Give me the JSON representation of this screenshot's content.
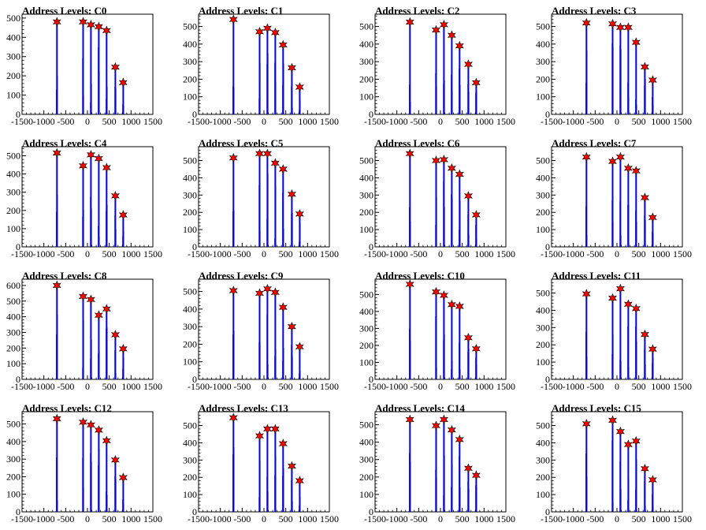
{
  "chart_data": [
    {
      "type": "bar",
      "title": "Address Levels: C0",
      "xlim": [
        -1500,
        1500
      ],
      "ylim": [
        0,
        520
      ],
      "x_ticks": [
        -1500,
        -1000,
        -500,
        0,
        500,
        1000,
        1500
      ],
      "y_ticks": [
        0,
        100,
        200,
        300,
        400,
        500
      ],
      "peaks": [
        {
          "x": -700,
          "y": 480
        },
        {
          "x": -100,
          "y": 480
        },
        {
          "x": 80,
          "y": 465
        },
        {
          "x": 260,
          "y": 455
        },
        {
          "x": 440,
          "y": 435
        },
        {
          "x": 640,
          "y": 245
        },
        {
          "x": 820,
          "y": 165
        }
      ]
    },
    {
      "type": "bar",
      "title": "Address Levels: C1",
      "xlim": [
        -1500,
        1500
      ],
      "ylim": [
        0,
        570
      ],
      "x_ticks": [
        -1500,
        -1000,
        -500,
        0,
        500,
        1000,
        1500
      ],
      "y_ticks": [
        0,
        100,
        200,
        300,
        400,
        500
      ],
      "peaks": [
        {
          "x": -700,
          "y": 540
        },
        {
          "x": -100,
          "y": 470
        },
        {
          "x": 80,
          "y": 490
        },
        {
          "x": 260,
          "y": 465
        },
        {
          "x": 440,
          "y": 395
        },
        {
          "x": 640,
          "y": 265
        },
        {
          "x": 820,
          "y": 155
        }
      ]
    },
    {
      "type": "bar",
      "title": "Address Levels: C2",
      "xlim": [
        -1500,
        1500
      ],
      "ylim": [
        0,
        570
      ],
      "x_ticks": [
        -1500,
        -1000,
        -500,
        0,
        500,
        1000,
        1500
      ],
      "y_ticks": [
        0,
        100,
        200,
        300,
        400,
        500
      ],
      "peaks": [
        {
          "x": -700,
          "y": 525
        },
        {
          "x": -100,
          "y": 480
        },
        {
          "x": 80,
          "y": 510
        },
        {
          "x": 260,
          "y": 450
        },
        {
          "x": 440,
          "y": 390
        },
        {
          "x": 640,
          "y": 285
        },
        {
          "x": 820,
          "y": 180
        }
      ]
    },
    {
      "type": "bar",
      "title": "Address Levels: C3",
      "xlim": [
        -1500,
        1500
      ],
      "ylim": [
        0,
        570
      ],
      "x_ticks": [
        -1500,
        -1000,
        -500,
        0,
        500,
        1000,
        1500
      ],
      "y_ticks": [
        0,
        100,
        200,
        300,
        400,
        500
      ],
      "peaks": [
        {
          "x": -700,
          "y": 520
        },
        {
          "x": -100,
          "y": 515
        },
        {
          "x": 80,
          "y": 495
        },
        {
          "x": 260,
          "y": 495
        },
        {
          "x": 440,
          "y": 410
        },
        {
          "x": 640,
          "y": 270
        },
        {
          "x": 820,
          "y": 195
        }
      ]
    },
    {
      "type": "bar",
      "title": "Address Levels: C4",
      "xlim": [
        -1500,
        1500
      ],
      "ylim": [
        0,
        550
      ],
      "x_ticks": [
        -1500,
        -1000,
        -500,
        0,
        500,
        1000,
        1500
      ],
      "y_ticks": [
        0,
        100,
        200,
        300,
        400,
        500
      ],
      "peaks": [
        {
          "x": -700,
          "y": 515
        },
        {
          "x": -100,
          "y": 445
        },
        {
          "x": 80,
          "y": 505
        },
        {
          "x": 260,
          "y": 485
        },
        {
          "x": 440,
          "y": 435
        },
        {
          "x": 640,
          "y": 280
        },
        {
          "x": 820,
          "y": 175
        }
      ]
    },
    {
      "type": "bar",
      "title": "Address Levels: C5",
      "xlim": [
        -1500,
        1500
      ],
      "ylim": [
        0,
        580
      ],
      "x_ticks": [
        -1500,
        -1000,
        -500,
        0,
        500,
        1000,
        1500
      ],
      "y_ticks": [
        0,
        100,
        200,
        300,
        400,
        500
      ],
      "peaks": [
        {
          "x": -700,
          "y": 515
        },
        {
          "x": -100,
          "y": 540
        },
        {
          "x": 80,
          "y": 540
        },
        {
          "x": 260,
          "y": 485
        },
        {
          "x": 440,
          "y": 450
        },
        {
          "x": 640,
          "y": 305
        },
        {
          "x": 820,
          "y": 190
        }
      ]
    },
    {
      "type": "bar",
      "title": "Address Levels: C6",
      "xlim": [
        -1500,
        1500
      ],
      "ylim": [
        0,
        580
      ],
      "x_ticks": [
        -1500,
        -1000,
        -500,
        0,
        500,
        1000,
        1500
      ],
      "y_ticks": [
        0,
        100,
        200,
        300,
        400,
        500
      ],
      "peaks": [
        {
          "x": -700,
          "y": 540
        },
        {
          "x": -100,
          "y": 500
        },
        {
          "x": 80,
          "y": 505
        },
        {
          "x": 260,
          "y": 455
        },
        {
          "x": 440,
          "y": 420
        },
        {
          "x": 640,
          "y": 295
        },
        {
          "x": 820,
          "y": 185
        }
      ]
    },
    {
      "type": "bar",
      "title": "Address Levels: C7",
      "xlim": [
        -1500,
        1500
      ],
      "ylim": [
        0,
        580
      ],
      "x_ticks": [
        -1500,
        -1000,
        -500,
        0,
        500,
        1000,
        1500
      ],
      "y_ticks": [
        0,
        100,
        200,
        300,
        400,
        500
      ],
      "peaks": [
        {
          "x": -700,
          "y": 520
        },
        {
          "x": -100,
          "y": 495
        },
        {
          "x": 80,
          "y": 520
        },
        {
          "x": 260,
          "y": 455
        },
        {
          "x": 440,
          "y": 440
        },
        {
          "x": 640,
          "y": 285
        },
        {
          "x": 820,
          "y": 170
        }
      ]
    },
    {
      "type": "bar",
      "title": "Address Levels: C8",
      "xlim": [
        -1500,
        1500
      ],
      "ylim": [
        0,
        640
      ],
      "x_ticks": [
        -1500,
        -1000,
        -500,
        0,
        500,
        1000,
        1500
      ],
      "y_ticks": [
        0,
        100,
        200,
        300,
        400,
        500,
        600
      ],
      "peaks": [
        {
          "x": -700,
          "y": 600
        },
        {
          "x": -100,
          "y": 530
        },
        {
          "x": 80,
          "y": 510
        },
        {
          "x": 260,
          "y": 410
        },
        {
          "x": 440,
          "y": 450
        },
        {
          "x": 640,
          "y": 285
        },
        {
          "x": 820,
          "y": 195
        }
      ]
    },
    {
      "type": "bar",
      "title": "Address Levels: C9",
      "xlim": [
        -1500,
        1500
      ],
      "ylim": [
        0,
        570
      ],
      "x_ticks": [
        -1500,
        -1000,
        -500,
        0,
        500,
        1000,
        1500
      ],
      "y_ticks": [
        0,
        100,
        200,
        300,
        400,
        500
      ],
      "peaks": [
        {
          "x": -700,
          "y": 505
        },
        {
          "x": -100,
          "y": 490
        },
        {
          "x": 80,
          "y": 515
        },
        {
          "x": 260,
          "y": 495
        },
        {
          "x": 440,
          "y": 410
        },
        {
          "x": 640,
          "y": 300
        },
        {
          "x": 820,
          "y": 185
        }
      ]
    },
    {
      "type": "bar",
      "title": "Address Levels: C10",
      "xlim": [
        -1500,
        1500
      ],
      "ylim": [
        0,
        590
      ],
      "x_ticks": [
        -1500,
        -1000,
        -500,
        0,
        500,
        1000,
        1500
      ],
      "y_ticks": [
        0,
        100,
        200,
        300,
        400,
        500
      ],
      "peaks": [
        {
          "x": -700,
          "y": 560
        },
        {
          "x": -100,
          "y": 515
        },
        {
          "x": 80,
          "y": 495
        },
        {
          "x": 260,
          "y": 440
        },
        {
          "x": 440,
          "y": 430
        },
        {
          "x": 640,
          "y": 245
        },
        {
          "x": 820,
          "y": 180
        }
      ]
    },
    {
      "type": "bar",
      "title": "Address Levels: C11",
      "xlim": [
        -1500,
        1500
      ],
      "ylim": [
        0,
        580
      ],
      "x_ticks": [
        -1500,
        -1000,
        -500,
        0,
        500,
        1000,
        1500
      ],
      "y_ticks": [
        0,
        100,
        200,
        300,
        400,
        500
      ],
      "peaks": [
        {
          "x": -700,
          "y": 495
        },
        {
          "x": -100,
          "y": 470
        },
        {
          "x": 80,
          "y": 525
        },
        {
          "x": 260,
          "y": 435
        },
        {
          "x": 440,
          "y": 410
        },
        {
          "x": 640,
          "y": 260
        },
        {
          "x": 820,
          "y": 175
        }
      ]
    },
    {
      "type": "bar",
      "title": "Address Levels: C12",
      "xlim": [
        -1500,
        1500
      ],
      "ylim": [
        0,
        570
      ],
      "x_ticks": [
        -1500,
        -1000,
        -500,
        0,
        500,
        1000,
        1500
      ],
      "y_ticks": [
        0,
        100,
        200,
        300,
        400,
        500
      ],
      "peaks": [
        {
          "x": -700,
          "y": 530
        },
        {
          "x": -100,
          "y": 510
        },
        {
          "x": 80,
          "y": 495
        },
        {
          "x": 260,
          "y": 465
        },
        {
          "x": 440,
          "y": 405
        },
        {
          "x": 640,
          "y": 295
        },
        {
          "x": 820,
          "y": 195
        }
      ]
    },
    {
      "type": "bar",
      "title": "Address Levels: C13",
      "xlim": [
        -1500,
        1500
      ],
      "ylim": [
        0,
        580
      ],
      "x_ticks": [
        -1500,
        -1000,
        -500,
        0,
        500,
        1000,
        1500
      ],
      "y_ticks": [
        0,
        100,
        200,
        300,
        400,
        500
      ],
      "peaks": [
        {
          "x": -700,
          "y": 545
        },
        {
          "x": -100,
          "y": 440
        },
        {
          "x": 80,
          "y": 480
        },
        {
          "x": 260,
          "y": 480
        },
        {
          "x": 440,
          "y": 395
        },
        {
          "x": 640,
          "y": 265
        },
        {
          "x": 820,
          "y": 180
        }
      ]
    },
    {
      "type": "bar",
      "title": "Address Levels: C14",
      "xlim": [
        -1500,
        1500
      ],
      "ylim": [
        0,
        575
      ],
      "x_ticks": [
        -1500,
        -1000,
        -500,
        0,
        500,
        1000,
        1500
      ],
      "y_ticks": [
        0,
        100,
        200,
        300,
        400,
        500
      ],
      "peaks": [
        {
          "x": -700,
          "y": 530
        },
        {
          "x": -100,
          "y": 495
        },
        {
          "x": 80,
          "y": 530
        },
        {
          "x": 260,
          "y": 470
        },
        {
          "x": 440,
          "y": 415
        },
        {
          "x": 640,
          "y": 250
        },
        {
          "x": 820,
          "y": 210
        }
      ]
    },
    {
      "type": "bar",
      "title": "Address Levels: C15",
      "xlim": [
        -1500,
        1500
      ],
      "ylim": [
        0,
        580
      ],
      "x_ticks": [
        -1500,
        -1000,
        -500,
        0,
        500,
        1000,
        1500
      ],
      "y_ticks": [
        0,
        100,
        200,
        300,
        400,
        500
      ],
      "peaks": [
        {
          "x": -700,
          "y": 510
        },
        {
          "x": -100,
          "y": 530
        },
        {
          "x": 80,
          "y": 465
        },
        {
          "x": 260,
          "y": 390
        },
        {
          "x": 440,
          "y": 410
        },
        {
          "x": 640,
          "y": 250
        },
        {
          "x": 820,
          "y": 185
        }
      ]
    }
  ],
  "colors": {
    "bar": "#0000ff",
    "marker": "#ff0000",
    "marker_edge": "#000000",
    "axis": "#000000",
    "background": "#ffffff"
  }
}
